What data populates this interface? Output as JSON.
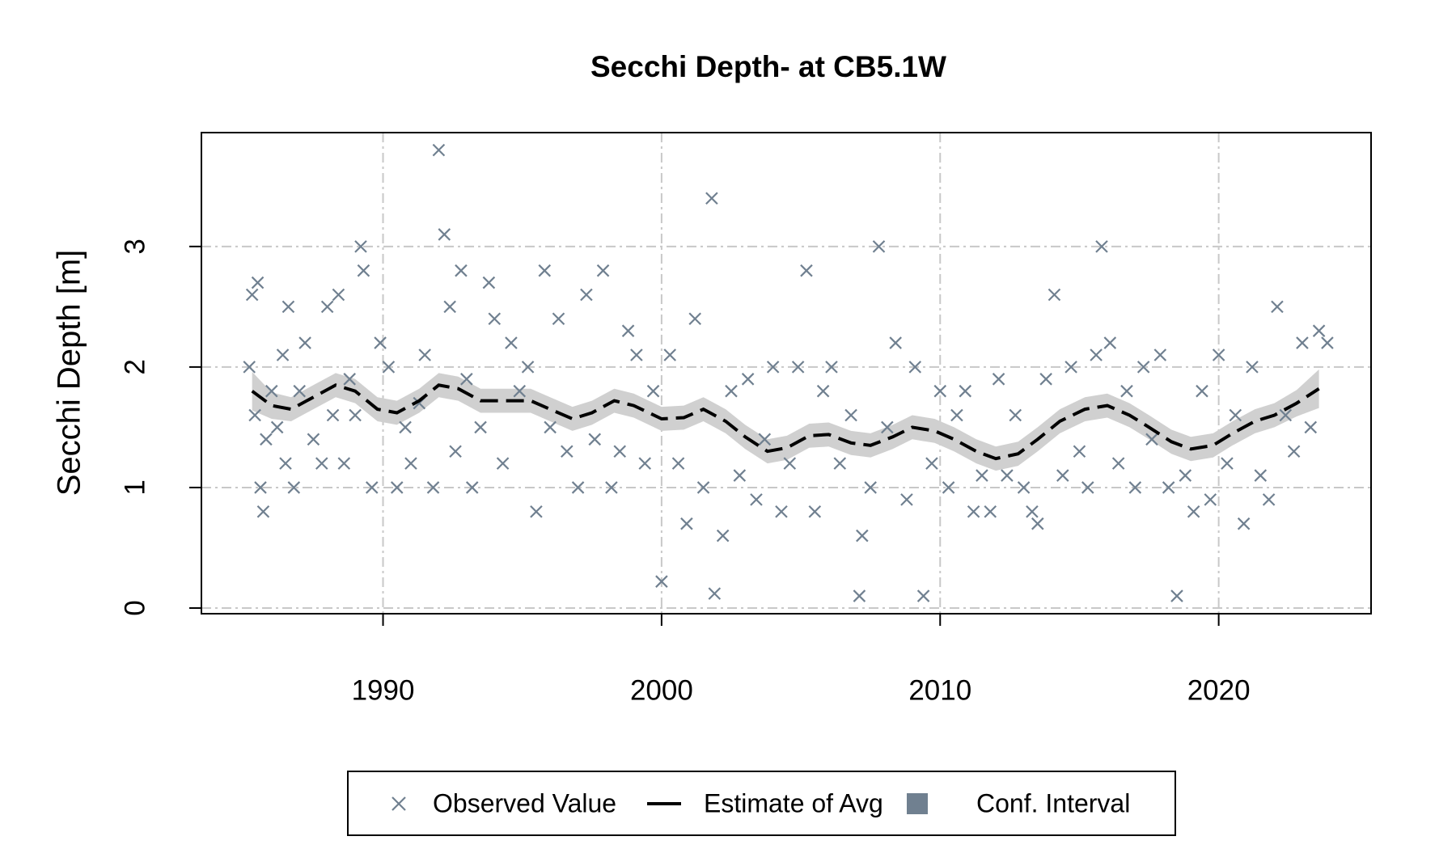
{
  "chart_data": {
    "type": "scatter",
    "title": "Secchi Depth- at CB5.1W",
    "y_label": "Secchi Depth [m]",
    "xlim": [
      1983.48,
      2025.47
    ],
    "ylim": [
      -0.047,
      3.945
    ],
    "xticks": [
      1990,
      2000,
      2010,
      2020
    ],
    "yticks": [
      0,
      1,
      2,
      3
    ],
    "grid": true,
    "series": [
      {
        "name": "Observed Value",
        "type": "scatter",
        "color": "#708090",
        "x": [
          1985.2,
          1985.3,
          1985.4,
          1985.5,
          1985.6,
          1985.7,
          1985.8,
          1986.0,
          1986.2,
          1986.4,
          1986.5,
          1986.6,
          1986.8,
          1987.0,
          1987.2,
          1987.5,
          1987.8,
          1988.0,
          1988.2,
          1988.4,
          1988.6,
          1988.8,
          1989.0,
          1989.2,
          1989.3,
          1989.6,
          1989.9,
          1990.2,
          1990.5,
          1990.8,
          1991.0,
          1991.3,
          1991.5,
          1991.8,
          1992.0,
          1992.2,
          1992.4,
          1992.6,
          1992.8,
          1993.0,
          1993.2,
          1993.5,
          1993.8,
          1994.0,
          1994.3,
          1994.6,
          1994.9,
          1995.2,
          1995.5,
          1995.8,
          1996.0,
          1996.3,
          1996.6,
          1997.0,
          1997.3,
          1997.6,
          1997.9,
          1998.2,
          1998.5,
          1998.8,
          1999.1,
          1999.4,
          1999.7,
          2000.0,
          2000.3,
          2000.6,
          2000.9,
          2001.2,
          2001.5,
          2001.8,
          2001.9,
          2002.2,
          2002.5,
          2002.8,
          2003.1,
          2003.4,
          2003.7,
          2004.0,
          2004.3,
          2004.6,
          2004.9,
          2005.2,
          2005.5,
          2005.8,
          2006.1,
          2006.4,
          2006.8,
          2007.1,
          2007.2,
          2007.5,
          2007.8,
          2008.1,
          2008.4,
          2008.8,
          2009.1,
          2009.4,
          2009.7,
          2010.0,
          2010.3,
          2010.6,
          2010.9,
          2011.2,
          2011.5,
          2011.8,
          2012.1,
          2012.4,
          2012.7,
          2013.0,
          2013.3,
          2013.5,
          2013.8,
          2014.1,
          2014.4,
          2014.7,
          2015.0,
          2015.3,
          2015.6,
          2015.8,
          2016.1,
          2016.4,
          2016.7,
          2017.0,
          2017.3,
          2017.6,
          2017.9,
          2018.2,
          2018.5,
          2018.8,
          2019.1,
          2019.4,
          2019.7,
          2020.0,
          2020.3,
          2020.6,
          2020.9,
          2021.2,
          2021.5,
          2021.8,
          2022.1,
          2022.4,
          2022.7,
          2023.0,
          2023.3,
          2023.6,
          2023.9
        ],
        "values": [
          2.0,
          2.6,
          1.6,
          2.7,
          1.0,
          0.8,
          1.4,
          1.8,
          1.5,
          2.1,
          1.2,
          2.5,
          1.0,
          1.8,
          2.2,
          1.4,
          1.2,
          2.5,
          1.6,
          2.6,
          1.2,
          1.9,
          1.6,
          3.0,
          2.8,
          1.0,
          2.2,
          2.0,
          1.0,
          1.5,
          1.2,
          1.7,
          2.1,
          1.0,
          3.8,
          3.1,
          2.5,
          1.3,
          2.8,
          1.9,
          1.0,
          1.5,
          2.7,
          2.4,
          1.2,
          2.2,
          1.8,
          2.0,
          0.8,
          2.8,
          1.5,
          2.4,
          1.3,
          1.0,
          2.6,
          1.4,
          2.8,
          1.0,
          1.3,
          2.3,
          2.1,
          1.2,
          1.8,
          0.22,
          2.1,
          1.2,
          0.7,
          2.4,
          1.0,
          3.4,
          0.12,
          0.6,
          1.8,
          1.1,
          1.9,
          0.9,
          1.4,
          2.0,
          0.8,
          1.2,
          2.0,
          2.8,
          0.8,
          1.8,
          2.0,
          1.2,
          1.6,
          0.1,
          0.6,
          1.0,
          3.0,
          1.5,
          2.2,
          0.9,
          2.0,
          0.1,
          1.2,
          1.8,
          1.0,
          1.6,
          1.8,
          0.8,
          1.1,
          0.8,
          1.9,
          1.1,
          1.6,
          1.0,
          0.8,
          0.7,
          1.9,
          2.6,
          1.1,
          2.0,
          1.3,
          1.0,
          2.1,
          3.0,
          2.2,
          1.2,
          1.8,
          1.0,
          2.0,
          1.4,
          2.1,
          1.0,
          0.1,
          1.1,
          0.8,
          1.8,
          0.9,
          2.1,
          1.2,
          1.6,
          0.7,
          2.0,
          1.1,
          0.9,
          2.5,
          1.6,
          1.3,
          2.2,
          1.5,
          2.3,
          2.2
        ]
      },
      {
        "name": "Estimate of Avg",
        "type": "line",
        "color": "#000000",
        "x": [
          1985.3,
          1986,
          1986.7,
          1987.5,
          1988.3,
          1989,
          1989.8,
          1990.5,
          1991.3,
          1992,
          1992.7,
          1993.5,
          1994.5,
          1995.3,
          1996,
          1996.8,
          1997.5,
          1998.3,
          1999,
          2000,
          2000.8,
          2001.5,
          2002.3,
          2003,
          2003.8,
          2004.5,
          2005.3,
          2006,
          2006.8,
          2007.5,
          2008.3,
          2009,
          2009.8,
          2010.5,
          2011.3,
          2012,
          2012.8,
          2013.5,
          2014.3,
          2015.2,
          2016,
          2016.8,
          2017.5,
          2018.3,
          2019,
          2019.8,
          2020.5,
          2021.3,
          2022,
          2022.8,
          2023.6
        ],
        "values": [
          1.8,
          1.68,
          1.65,
          1.75,
          1.85,
          1.8,
          1.65,
          1.62,
          1.72,
          1.85,
          1.82,
          1.72,
          1.72,
          1.72,
          1.65,
          1.57,
          1.62,
          1.72,
          1.68,
          1.57,
          1.58,
          1.65,
          1.55,
          1.42,
          1.3,
          1.33,
          1.43,
          1.44,
          1.37,
          1.35,
          1.42,
          1.5,
          1.47,
          1.4,
          1.3,
          1.24,
          1.28,
          1.4,
          1.55,
          1.65,
          1.68,
          1.6,
          1.5,
          1.38,
          1.32,
          1.35,
          1.45,
          1.55,
          1.6,
          1.7,
          1.82
        ]
      },
      {
        "name": "Conf. Interval",
        "type": "band",
        "color": "#708090",
        "fill": "#d0d0d0",
        "x": [
          1985.3,
          1986,
          1986.7,
          1987.5,
          1988.3,
          1989,
          1989.8,
          1990.5,
          1991.3,
          1992,
          1992.7,
          1993.5,
          1994.5,
          1995.3,
          1996,
          1996.8,
          1997.5,
          1998.3,
          1999,
          2000,
          2000.8,
          2001.5,
          2002.3,
          2003,
          2003.8,
          2004.5,
          2005.3,
          2006,
          2006.8,
          2007.5,
          2008.3,
          2009,
          2009.8,
          2010.5,
          2011.3,
          2012,
          2012.8,
          2013.5,
          2014.3,
          2015.2,
          2016,
          2016.8,
          2017.5,
          2018.3,
          2019,
          2019.8,
          2020.5,
          2021.3,
          2022,
          2022.8,
          2023.6
        ],
        "lower": [
          1.64,
          1.57,
          1.55,
          1.65,
          1.75,
          1.7,
          1.55,
          1.52,
          1.62,
          1.75,
          1.72,
          1.62,
          1.62,
          1.62,
          1.55,
          1.47,
          1.52,
          1.62,
          1.58,
          1.47,
          1.48,
          1.55,
          1.45,
          1.32,
          1.2,
          1.23,
          1.33,
          1.34,
          1.27,
          1.25,
          1.32,
          1.4,
          1.37,
          1.3,
          1.2,
          1.14,
          1.18,
          1.3,
          1.45,
          1.55,
          1.58,
          1.5,
          1.4,
          1.28,
          1.22,
          1.25,
          1.35,
          1.45,
          1.5,
          1.59,
          1.66
        ],
        "upper": [
          1.96,
          1.79,
          1.75,
          1.85,
          1.95,
          1.9,
          1.75,
          1.72,
          1.82,
          1.95,
          1.92,
          1.82,
          1.82,
          1.82,
          1.75,
          1.67,
          1.72,
          1.82,
          1.78,
          1.67,
          1.68,
          1.75,
          1.65,
          1.52,
          1.4,
          1.43,
          1.53,
          1.54,
          1.47,
          1.45,
          1.52,
          1.6,
          1.57,
          1.5,
          1.4,
          1.34,
          1.38,
          1.5,
          1.65,
          1.75,
          1.78,
          1.7,
          1.6,
          1.48,
          1.42,
          1.45,
          1.55,
          1.65,
          1.7,
          1.81,
          1.98
        ]
      }
    ]
  }
}
